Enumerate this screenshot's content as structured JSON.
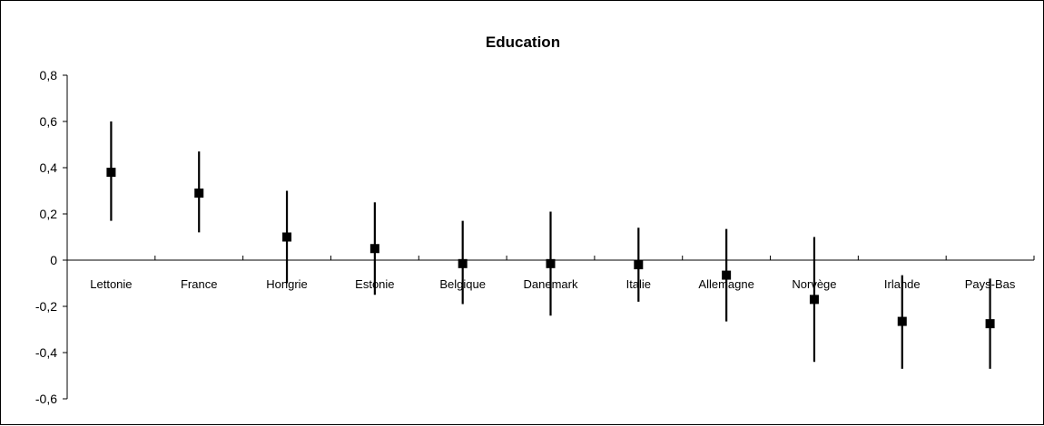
{
  "chart_data": {
    "type": "errorbar",
    "title": "Education",
    "xlabel": "",
    "ylabel": "",
    "ylim": [
      -0.6,
      0.8
    ],
    "ytick_step": 0.2,
    "ytick_labels": [
      "-0,6",
      "-0,4",
      "-0,2",
      "0",
      "0,2",
      "0,4",
      "0,6",
      "0,8"
    ],
    "grid": false,
    "legend": "none",
    "categories": [
      "Lettonie",
      "France",
      "Hongrie",
      "Estonie",
      "Belgique",
      "Danemark",
      "Italie",
      "Allemagne",
      "Norvège",
      "Irlande",
      "Pays-Bas"
    ],
    "values": [
      0.38,
      0.29,
      0.1,
      0.05,
      -0.015,
      -0.015,
      -0.02,
      -0.065,
      -0.17,
      -0.265,
      -0.275
    ],
    "lower": [
      0.17,
      0.12,
      -0.1,
      -0.15,
      -0.19,
      -0.24,
      -0.18,
      -0.265,
      -0.44,
      -0.47,
      -0.47
    ],
    "upper": [
      0.6,
      0.47,
      0.3,
      0.25,
      0.17,
      0.21,
      0.14,
      0.135,
      0.1,
      -0.065,
      -0.08
    ],
    "colors": {
      "marker": "#000000",
      "line": "#000000",
      "axis": "#000000"
    }
  }
}
